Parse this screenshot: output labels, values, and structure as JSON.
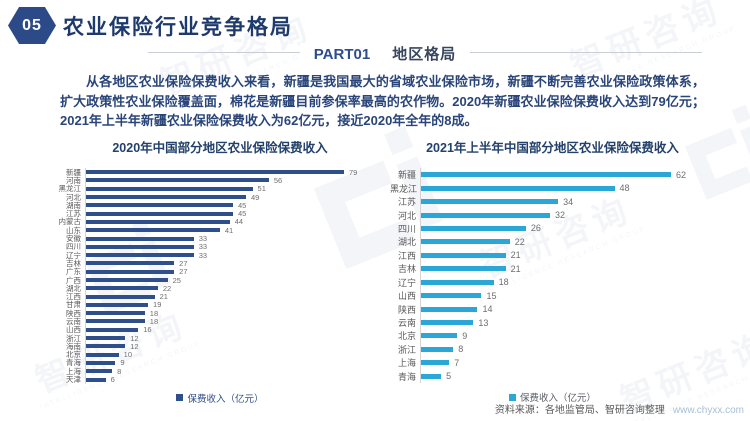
{
  "header": {
    "badge": "05",
    "title": "农业保险行业竞争格局",
    "part_label": "PART01",
    "part_title": "地区格局"
  },
  "paragraph": "从各地区农业保险保费收入来看，新疆是我国最大的省域农业保险市场，新疆不断完善农业保险政策体系，扩大政策性农业保险覆盖面，棉花是新疆目前参保率最高的农作物。2020年新疆农业保险保费收入达到79亿元；2021年上半年新疆农业保险保费收入为62亿元，接近2020年全年的8成。",
  "chart_data": [
    {
      "type": "bar",
      "orientation": "horizontal",
      "title": "2020年中国部分地区农业保险保费收入",
      "legend": "保费收入（亿元）",
      "bar_color": "#2f4e8c",
      "value_unit": "亿元",
      "scale_max": 79,
      "xlim": [
        0,
        79
      ],
      "grid": false,
      "legend_position": "bottom",
      "categories": [
        "新疆",
        "河南",
        "黑龙江",
        "河北",
        "湖南",
        "江苏",
        "内蒙古",
        "山东",
        "安徽",
        "四川",
        "辽宁",
        "吉林",
        "广东",
        "广西",
        "湖北",
        "江西",
        "甘肃",
        "陕西",
        "云南",
        "山西",
        "浙江",
        "海南",
        "北京",
        "青海",
        "上海",
        "天津"
      ],
      "values": [
        79,
        56,
        51,
        49,
        45,
        45,
        44,
        41,
        33,
        33,
        33,
        27,
        27,
        25,
        22,
        21,
        19,
        18,
        18,
        16,
        12,
        12,
        10,
        9,
        8,
        6
      ]
    },
    {
      "type": "bar",
      "orientation": "horizontal",
      "title": "2021年上半年中国部分地区农业保险保费收入",
      "legend": "保费收入（亿元）",
      "bar_color": "#2aa7d6",
      "value_unit": "亿元",
      "scale_max": 62,
      "xlim": [
        0,
        62
      ],
      "grid": false,
      "legend_position": "bottom",
      "categories": [
        "新疆",
        "黑龙江",
        "江苏",
        "河北",
        "四川",
        "湖北",
        "江西",
        "吉林",
        "辽宁",
        "山西",
        "陕西",
        "云南",
        "北京",
        "浙江",
        "上海",
        "青海"
      ],
      "values": [
        62,
        48,
        34,
        32,
        26,
        22,
        21,
        21,
        18,
        15,
        14,
        13,
        9,
        8,
        7,
        5
      ]
    }
  ],
  "footer": {
    "source": "资料来源：各地监管局、智研咨询整理",
    "site": "www.chyxx.com"
  },
  "watermark": {
    "text": "智研咨询",
    "subtext": "INTELLIGENCE RESEARCH GROUP"
  },
  "colors": {
    "navy": "#2f4e8c",
    "light_blue": "#2aa7d6",
    "heading": "#1e3a6d",
    "body_text": "#2a4579",
    "muted_gray": "#595959"
  }
}
